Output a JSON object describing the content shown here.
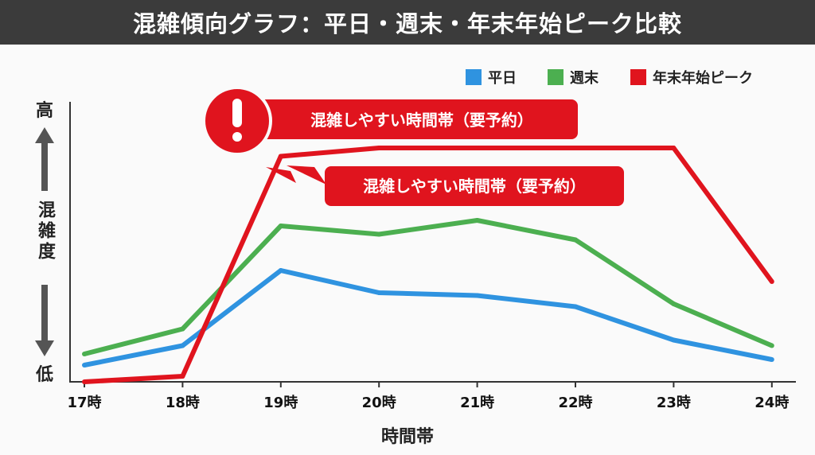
{
  "title": "混雑傾向グラフ：平日・週末・年末年始ピーク比較",
  "chart_data": {
    "type": "line",
    "title": "混雑傾向グラフ：平日・週末・年末年始ピーク比較",
    "xlabel": "時間帯",
    "ylabel": "混雑度",
    "y_high_label": "高",
    "y_low_label": "低",
    "ylim": [
      0,
      100
    ],
    "grid": false,
    "legend_position": "top-right",
    "categories": [
      "17時",
      "18時",
      "19時",
      "20時",
      "21時",
      "22時",
      "23時",
      "24時"
    ],
    "series": [
      {
        "name": "平日",
        "color": "#2f93e0",
        "values": [
          6,
          13,
          40,
          32,
          31,
          27,
          15,
          8
        ]
      },
      {
        "name": "週末",
        "color": "#4caf50",
        "values": [
          10,
          19,
          56,
          53,
          58,
          51,
          28,
          13
        ]
      },
      {
        "name": "年末年始ピーク",
        "color": "#e0141e",
        "values": [
          0,
          2,
          81,
          84,
          84,
          84,
          84,
          36
        ]
      }
    ],
    "annotations": [
      {
        "text": "混雑しやすい時間帯（要予約）",
        "icon": "exclamation-icon"
      },
      {
        "text": "混雑しやすい時間帯（要予約）"
      }
    ]
  }
}
